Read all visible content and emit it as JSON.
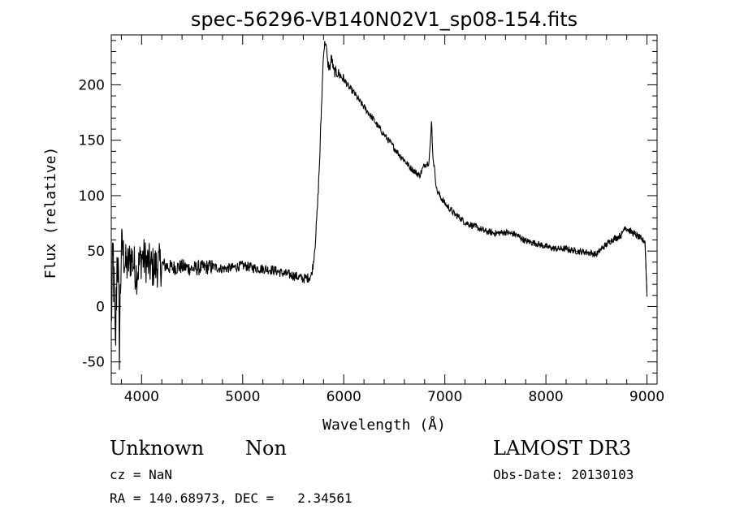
{
  "chart_data": {
    "type": "line",
    "title": "spec-56296-VB140N02V1_sp08-154.fits",
    "xlabel": "Wavelength (Å)",
    "ylabel": "Flux (relative)",
    "xlim": [
      3700,
      9100
    ],
    "ylim": [
      -70,
      245
    ],
    "xticks": [
      4000,
      5000,
      6000,
      7000,
      8000,
      9000
    ],
    "yticks": [
      -50,
      0,
      50,
      100,
      150,
      200
    ],
    "grid": false,
    "legend": "none",
    "series": [
      {
        "x": [
          3700,
          3720,
          3740,
          3760,
          3780,
          3800,
          3850,
          3900,
          3950,
          4000,
          4100,
          4200,
          4300,
          4400,
          4500,
          4600,
          4700,
          4800,
          4900,
          5000,
          5100,
          5200,
          5300,
          5400,
          5500,
          5600,
          5650,
          5680,
          5700,
          5720,
          5740,
          5760,
          5780,
          5800,
          5820,
          5840,
          5860,
          5880,
          5900,
          5950,
          6000,
          6050,
          6100,
          6150,
          6200,
          6250,
          6300,
          6350,
          6400,
          6450,
          6500,
          6550,
          6600,
          6650,
          6700,
          6750,
          6800,
          6840,
          6860,
          6870,
          6880,
          6890,
          6900,
          6920,
          6950,
          7000,
          7050,
          7100,
          7150,
          7200,
          7300,
          7400,
          7500,
          7600,
          7700,
          7800,
          7900,
          8000,
          8100,
          8200,
          8300,
          8400,
          8450,
          8500,
          8550,
          8600,
          8650,
          8700,
          8750,
          8780,
          8800,
          8850,
          8900,
          8950,
          8980,
          9000
        ],
        "y": [
          -10,
          45,
          -45,
          60,
          -30,
          55,
          35,
          45,
          30,
          45,
          35,
          38,
          35,
          36,
          34,
          35,
          36,
          34,
          35,
          37,
          35,
          34,
          33,
          30,
          28,
          25,
          26,
          28,
          40,
          60,
          90,
          130,
          180,
          230,
          240,
          220,
          215,
          225,
          212,
          210,
          205,
          198,
          193,
          186,
          180,
          174,
          168,
          161,
          155,
          149,
          143,
          137,
          132,
          126,
          122,
          118,
          128,
          130,
          150,
          170,
          138,
          130,
          122,
          105,
          100,
          93,
          88,
          83,
          80,
          76,
          72,
          68,
          66,
          67,
          65,
          59,
          57,
          54,
          52,
          52,
          50,
          49,
          48,
          47,
          52,
          56,
          60,
          62,
          65,
          72,
          70,
          67,
          64,
          60,
          59,
          10
        ]
      }
    ]
  },
  "footer": {
    "object_class": "Unknown",
    "object_subclass": "Non",
    "cz": "cz = NaN",
    "radec": "RA = 140.68973, DEC =   2.34561",
    "survey": "LAMOST DR3",
    "obs_date": "Obs-Date: 20130103"
  }
}
